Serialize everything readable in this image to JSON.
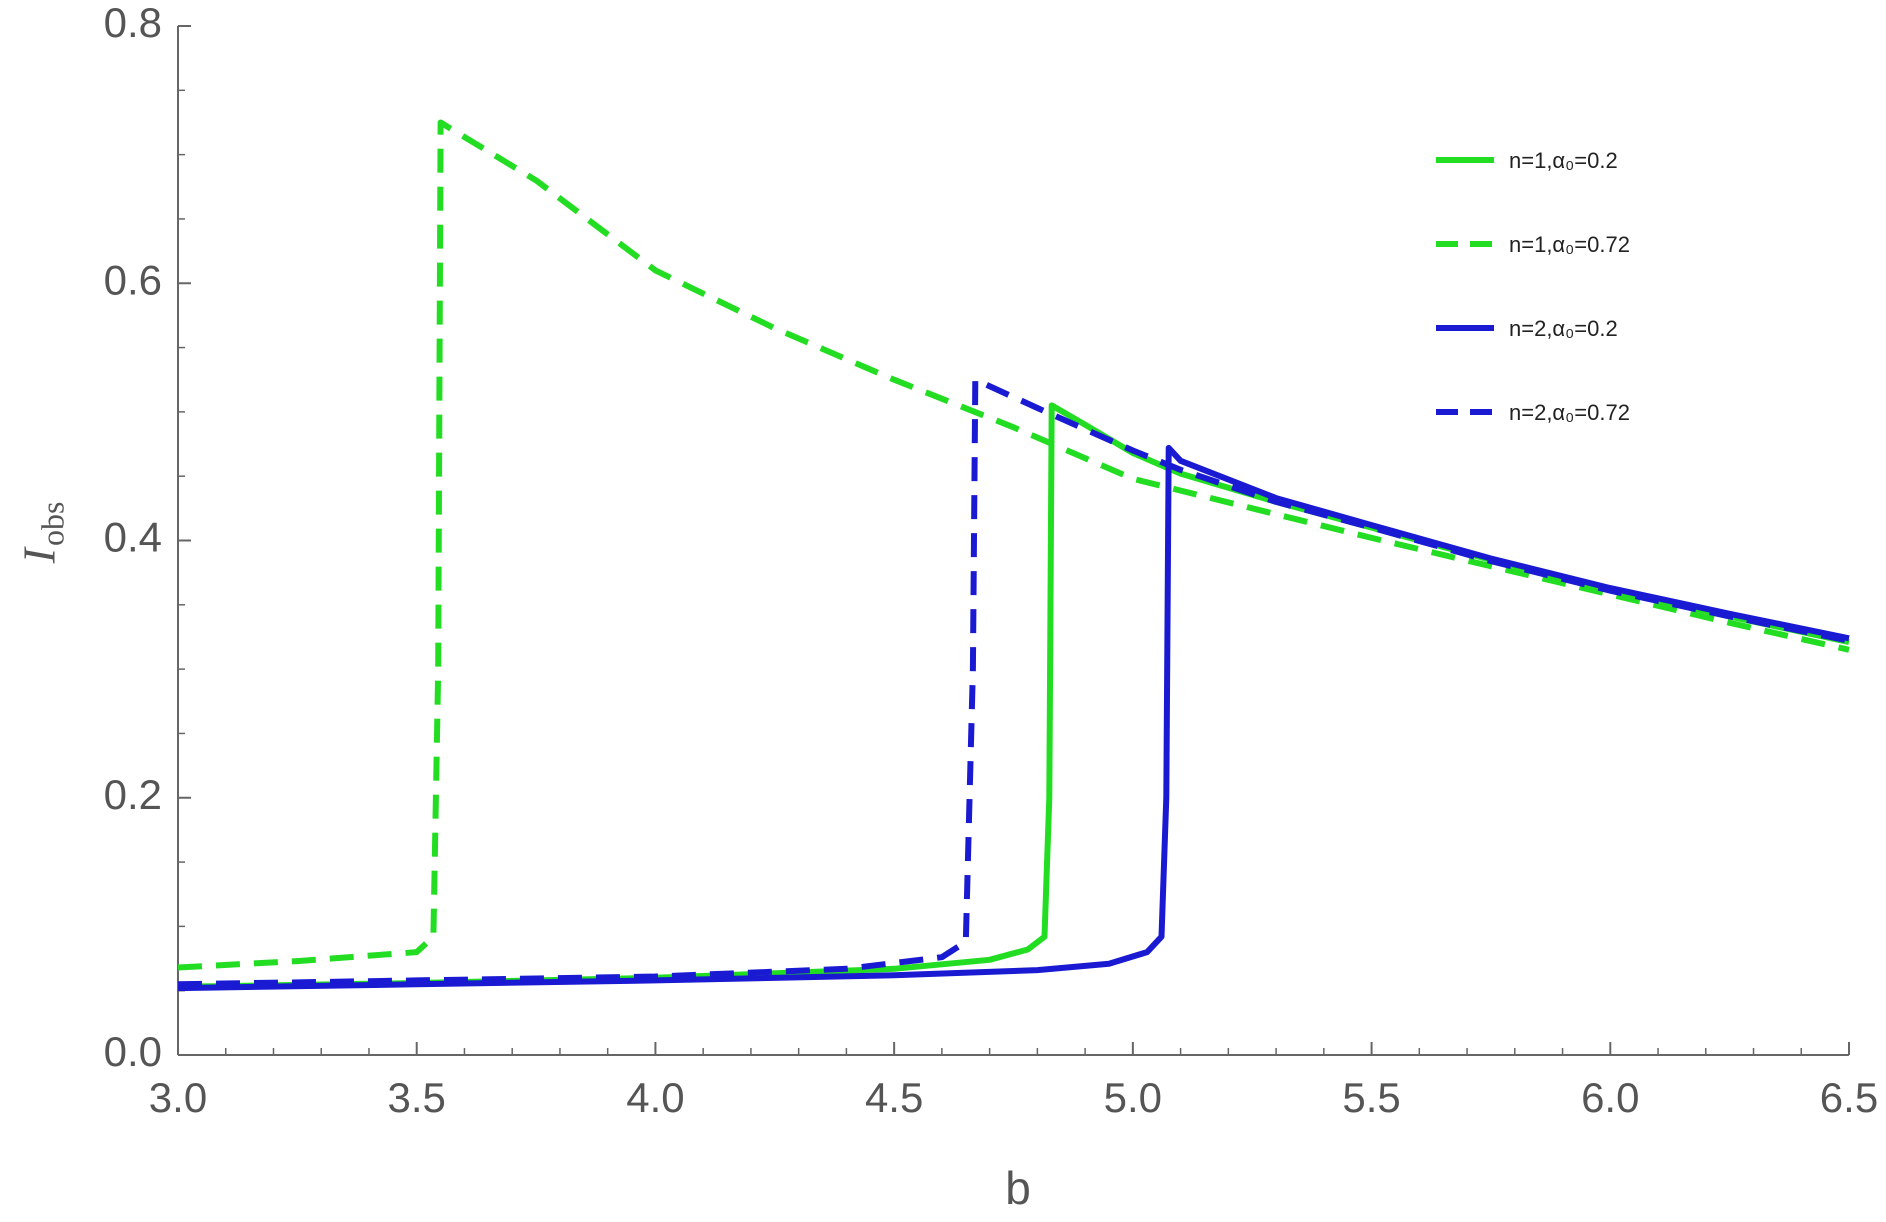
{
  "chart_data": {
    "type": "line",
    "xlabel": "b",
    "ylabel": {
      "text": "I",
      "subscript": "obs"
    },
    "xlim": [
      3,
      6.5
    ],
    "ylim": [
      0,
      0.8
    ],
    "xticks": [
      {
        "value": 3,
        "label": "3.0"
      },
      3.5,
      {
        "value": 4,
        "label": "4.0"
      },
      4.5,
      {
        "value": 5,
        "label": "5.0"
      },
      5.5,
      {
        "value": 6,
        "label": "6.0"
      },
      6.5
    ],
    "yticks": [
      {
        "value": 0,
        "label": "0.0"
      },
      0.2,
      0.4,
      0.6,
      0.8
    ],
    "xminorticks": [
      3.1,
      3.2,
      3.3,
      3.4,
      3.6,
      3.7,
      3.8,
      3.9,
      4.1,
      4.2,
      4.3,
      4.4,
      4.6,
      4.7,
      4.8,
      4.9,
      5.1,
      5.2,
      5.3,
      5.4,
      5.6,
      5.7,
      5.8,
      5.9,
      6.1,
      6.2,
      6.3,
      6.4
    ],
    "yminorticks": [
      0.05,
      0.1,
      0.15,
      0.25,
      0.3,
      0.35,
      0.45,
      0.5,
      0.55,
      0.65,
      0.7,
      0.75
    ],
    "legend": "upper right",
    "series": [
      {
        "name": "n=1,α₀=0.2",
        "color": "#22dd22",
        "dashed": false,
        "x": [
          3.0,
          3.5,
          4.0,
          4.5,
          4.7,
          4.78,
          4.815,
          4.825,
          4.83,
          4.9,
          5.0,
          5.1,
          5.3,
          5.5,
          5.75,
          6.0,
          6.25,
          6.5
        ],
        "values": [
          0.053,
          0.056,
          0.06,
          0.067,
          0.074,
          0.082,
          0.092,
          0.2,
          0.505,
          0.49,
          0.468,
          0.452,
          0.43,
          0.41,
          0.385,
          0.362,
          0.341,
          0.321
        ]
      },
      {
        "name": "n=1,α₀=0.72",
        "color": "#22dd22",
        "dashed": true,
        "x": [
          3.0,
          3.25,
          3.5,
          3.535,
          3.545,
          3.55,
          3.75,
          4.0,
          4.25,
          4.5,
          4.75,
          5.0,
          5.25,
          5.5,
          5.75,
          6.0,
          6.25,
          6.5
        ],
        "values": [
          0.068,
          0.073,
          0.08,
          0.092,
          0.3,
          0.725,
          0.68,
          0.61,
          0.565,
          0.525,
          0.488,
          0.448,
          0.425,
          0.402,
          0.38,
          0.358,
          0.336,
          0.315
        ]
      },
      {
        "name": "n=2,α₀=0.2",
        "color": "#1a1ad2",
        "dashed": false,
        "x": [
          3.0,
          3.5,
          4.0,
          4.5,
          4.8,
          4.95,
          5.03,
          5.06,
          5.07,
          5.075,
          5.1,
          5.3,
          5.5,
          5.75,
          6.0,
          6.25,
          6.5
        ],
        "values": [
          0.052,
          0.055,
          0.058,
          0.062,
          0.066,
          0.071,
          0.08,
          0.092,
          0.2,
          0.472,
          0.462,
          0.433,
          0.412,
          0.386,
          0.363,
          0.343,
          0.324
        ]
      },
      {
        "name": "n=2,α₀=0.72",
        "color": "#1a1ad2",
        "dashed": true,
        "x": [
          3.0,
          3.5,
          4.0,
          4.4,
          4.6,
          4.65,
          4.665,
          4.67,
          4.8,
          5.0,
          5.1,
          5.3,
          5.5,
          5.75,
          6.0,
          6.25,
          6.5
        ],
        "values": [
          0.055,
          0.058,
          0.061,
          0.067,
          0.076,
          0.088,
          0.3,
          0.525,
          0.503,
          0.47,
          0.455,
          0.43,
          0.41,
          0.384,
          0.361,
          0.341,
          0.322
        ]
      }
    ]
  }
}
